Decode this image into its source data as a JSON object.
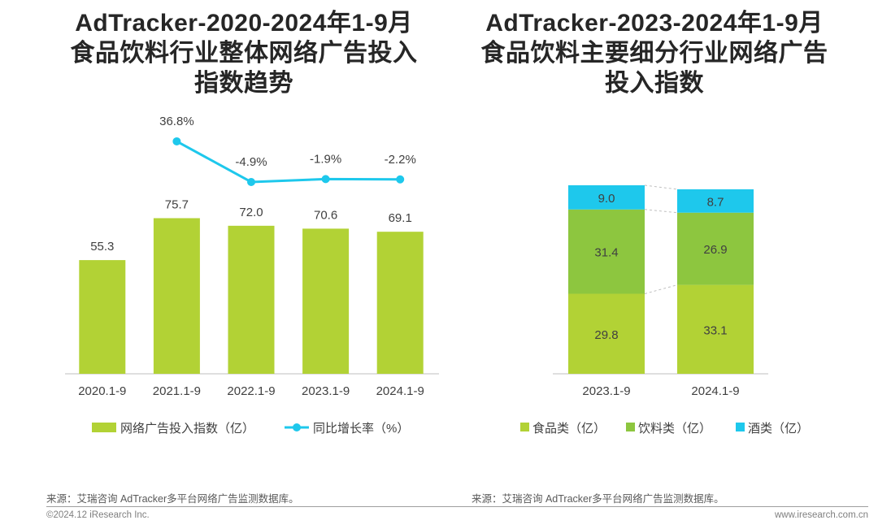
{
  "titles": {
    "left": [
      "AdTracker-2020-2024年1-9月",
      "食品饮料行业整体网络广告投入",
      "指数趋势"
    ],
    "right": [
      "AdTracker-2023-2024年1-9月",
      "食品饮料主要细分行业网络广告",
      "投入指数"
    ]
  },
  "chart_data": [
    {
      "type": "bar",
      "categories": [
        "2020.1-9",
        "2021.1-9",
        "2022.1-9",
        "2023.1-9",
        "2024.1-9"
      ],
      "series": [
        {
          "name": "网络广告投入指数（亿）",
          "type": "bar",
          "color": "#b2d235",
          "values": [
            55.3,
            75.7,
            72.0,
            70.6,
            69.1
          ],
          "labels": [
            "55.3",
            "75.7",
            "72.0",
            "70.6",
            "69.1"
          ]
        },
        {
          "name": "同比增长率（%）",
          "type": "line",
          "color": "#1ec8ec",
          "values": [
            null,
            36.8,
            -4.9,
            -1.9,
            -2.2
          ],
          "labels": [
            "",
            "36.8%",
            "-4.9%",
            "-1.9%",
            "-2.2%"
          ]
        }
      ],
      "ylim": [
        0,
        100
      ],
      "legend": "bottom"
    },
    {
      "type": "bar",
      "stacked": true,
      "categories": [
        "2023.1-9",
        "2024.1-9"
      ],
      "series": [
        {
          "name": "食品类（亿）",
          "color": "#b2d235",
          "values": [
            29.8,
            33.1
          ],
          "labels": [
            "29.8",
            "33.1"
          ]
        },
        {
          "name": "饮料类（亿）",
          "color": "#8dc63f",
          "values": [
            31.4,
            26.9
          ],
          "labels": [
            "31.4",
            "26.9"
          ]
        },
        {
          "name": "酒类（亿）",
          "color": "#1ec8ec",
          "values": [
            9.0,
            8.7
          ],
          "labels": [
            "9.0",
            "8.7"
          ]
        }
      ],
      "legend": "bottom"
    }
  ],
  "source": {
    "left": "来源：艾瑞咨询 AdTracker多平台网络广告监测数据库。",
    "right": "来源：艾瑞咨询 AdTracker多平台网络广告监测数据库。"
  },
  "footer": {
    "copyright": "©2024.12 iResearch Inc.",
    "website": "www.iresearch.com.cn"
  }
}
